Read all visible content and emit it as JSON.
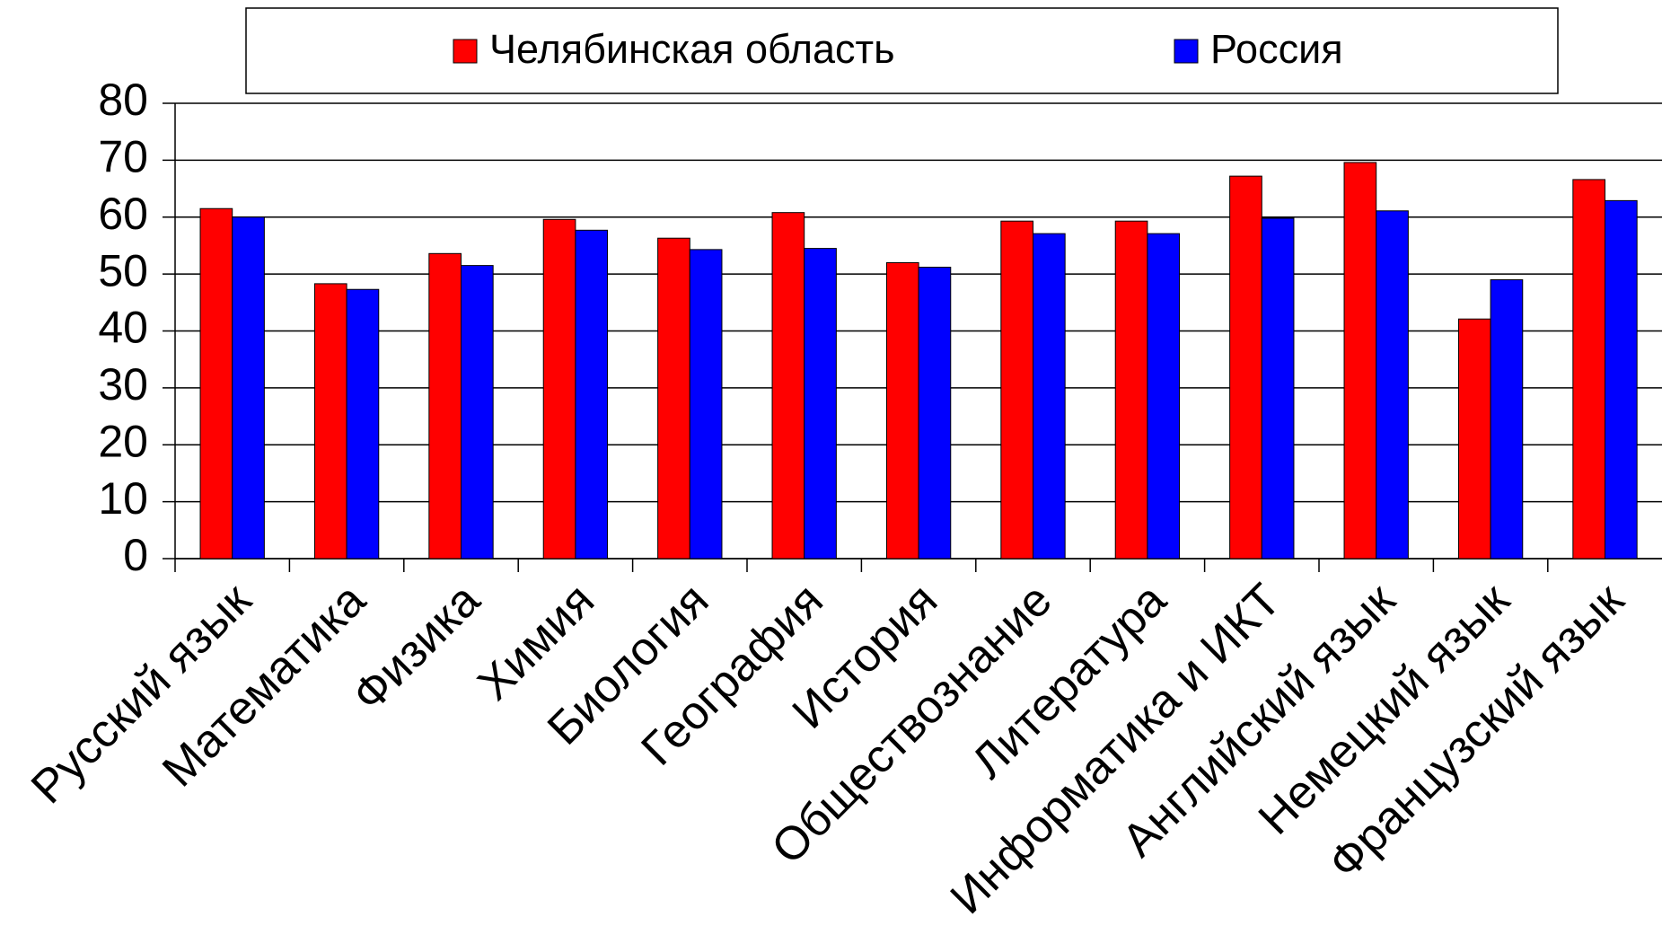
{
  "chart_data": {
    "type": "bar",
    "categories": [
      "Русский язык",
      "Математика",
      "Физика",
      "Химия",
      "Биология",
      "География",
      "История",
      "Обществознание",
      "Литература",
      "Информатика и ИКТ",
      "Английский язык",
      "Немецкий язык",
      "Французский язык"
    ],
    "series": [
      {
        "name": "Челябинская область",
        "color": "#ff0000",
        "values": [
          61.5,
          48.3,
          53.6,
          59.6,
          56.3,
          60.8,
          52,
          59.3,
          59.3,
          67.2,
          69.6,
          42.1,
          66.6
        ]
      },
      {
        "name": "Россия",
        "color": "#0000ff",
        "values": [
          60,
          47.3,
          51.5,
          57.7,
          54.3,
          54.5,
          51.2,
          57.1,
          57.1,
          59.8,
          61.1,
          49,
          62.9
        ]
      }
    ],
    "ylim": [
      0,
      80
    ],
    "yticks": [
      0,
      10,
      20,
      30,
      40,
      50,
      60,
      70,
      80
    ],
    "grid": true,
    "legend": "top"
  }
}
